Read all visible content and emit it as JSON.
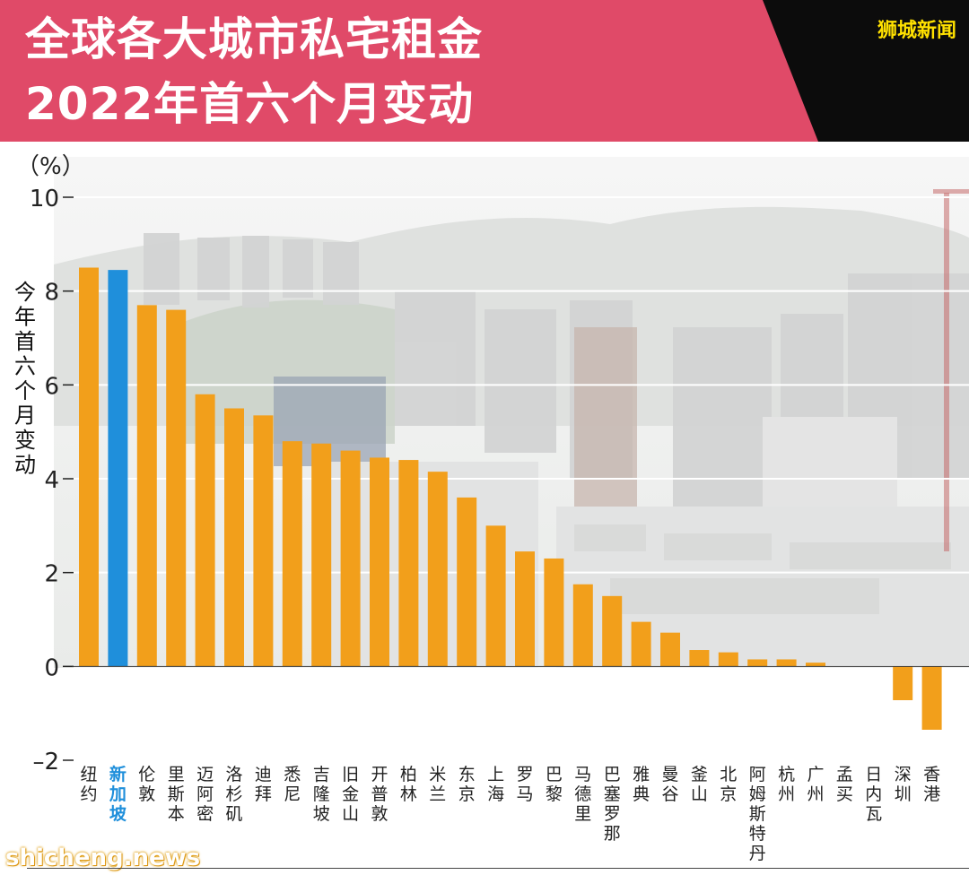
{
  "header": {
    "title_line1": "全球各大城市私宅租金",
    "title_line2": "2022年首六个月变动",
    "brand": "狮城新闻"
  },
  "watermark": "shicheng.news",
  "colors": {
    "header_bg": "#e04a68",
    "header_accent": "#0c0c0c",
    "brand_text": "#ffe100",
    "bar_default": "#f29f1b",
    "bar_highlight": "#1f8fdb",
    "highlight_label": "#1f8fdb"
  },
  "chart_data": {
    "type": "bar",
    "unit_label": "（%）",
    "ylabel": "今年首六个月变动",
    "ylim": [
      -2,
      10
    ],
    "yticks": [
      10,
      8,
      6,
      4,
      2,
      0,
      -2
    ],
    "ytick_labels": [
      "10",
      "8",
      "6",
      "4",
      "2",
      "0",
      "–2"
    ],
    "grid": true,
    "highlight_category": "新加坡",
    "categories": [
      "纽约",
      "新加坡",
      "伦敦",
      "里斯本",
      "迈阿密",
      "洛杉矶",
      "迪拜",
      "悉尼",
      "吉隆坡",
      "旧金山",
      "开普敦",
      "柏林",
      "米兰",
      "东京",
      "上海",
      "罗马",
      "巴黎",
      "马德里",
      "巴塞罗那",
      "雅典",
      "曼谷",
      "釜山",
      "北京",
      "阿姆斯特丹",
      "杭州",
      "广州",
      "孟买",
      "日内瓦",
      "深圳",
      "香港"
    ],
    "values": [
      8.5,
      8.45,
      7.7,
      7.6,
      5.8,
      5.5,
      5.35,
      4.8,
      4.75,
      4.6,
      4.45,
      4.4,
      4.15,
      3.6,
      3.0,
      2.45,
      2.3,
      1.75,
      1.5,
      0.95,
      0.72,
      0.35,
      0.3,
      0.15,
      0.15,
      0.08,
      0.0,
      0.0,
      -0.72,
      -1.35
    ]
  }
}
